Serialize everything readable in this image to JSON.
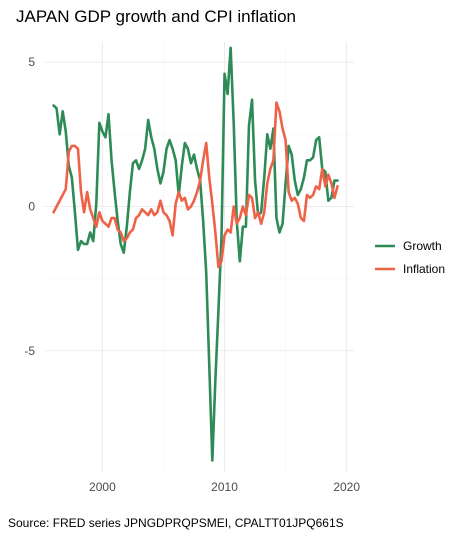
{
  "chart_data": {
    "type": "line",
    "title": "JAPAN GDP growth and CPI inflation",
    "xlabel": "",
    "ylabel": "",
    "caption": "Source: FRED series JPNGDPRQPSMEI, CPALTT01JPQ661S",
    "x_ticks": [
      2000,
      2010,
      2020
    ],
    "y_ticks": [
      -5,
      0,
      5
    ],
    "xlim": [
      1995.3,
      2020.6
    ],
    "ylim": [
      -9.2,
      5.7
    ],
    "grid": true,
    "legend": {
      "position": "right",
      "entries": [
        "Growth",
        "Inflation"
      ]
    },
    "series": [
      {
        "name": "Growth",
        "color": "#2E8B57",
        "points": [
          [
            1996.0,
            3.5
          ],
          [
            1996.25,
            3.4
          ],
          [
            1996.5,
            2.5
          ],
          [
            1996.75,
            3.3
          ],
          [
            1997.0,
            2.6
          ],
          [
            1997.25,
            1.4
          ],
          [
            1997.5,
            1.0
          ],
          [
            1997.75,
            -0.2
          ],
          [
            1998.0,
            -1.5
          ],
          [
            1998.25,
            -1.2
          ],
          [
            1998.5,
            -1.3
          ],
          [
            1998.75,
            -1.3
          ],
          [
            1999.0,
            -0.9
          ],
          [
            1999.25,
            -1.2
          ],
          [
            1999.5,
            0.1
          ],
          [
            1999.75,
            2.9
          ],
          [
            2000.0,
            2.6
          ],
          [
            2000.25,
            2.4
          ],
          [
            2000.5,
            3.2
          ],
          [
            2000.75,
            1.6
          ],
          [
            2001.0,
            0.5
          ],
          [
            2001.25,
            -0.5
          ],
          [
            2001.5,
            -1.3
          ],
          [
            2001.75,
            -1.6
          ],
          [
            2002.0,
            -0.7
          ],
          [
            2002.25,
            0.5
          ],
          [
            2002.5,
            1.5
          ],
          [
            2002.75,
            1.6
          ],
          [
            2003.0,
            1.3
          ],
          [
            2003.25,
            1.6
          ],
          [
            2003.5,
            2.0
          ],
          [
            2003.75,
            3.0
          ],
          [
            2004.0,
            2.4
          ],
          [
            2004.25,
            2.0
          ],
          [
            2004.5,
            1.3
          ],
          [
            2004.75,
            0.8
          ],
          [
            2005.0,
            1.2
          ],
          [
            2005.25,
            2.0
          ],
          [
            2005.5,
            2.3
          ],
          [
            2005.75,
            2.0
          ],
          [
            2006.0,
            1.6
          ],
          [
            2006.25,
            0.4
          ],
          [
            2006.5,
            1.4
          ],
          [
            2006.75,
            2.2
          ],
          [
            2007.0,
            2.0
          ],
          [
            2007.25,
            1.5
          ],
          [
            2007.5,
            1.8
          ],
          [
            2007.75,
            1.3
          ],
          [
            2008.0,
            0.9
          ],
          [
            2008.25,
            -0.5
          ],
          [
            2008.5,
            -2.3
          ],
          [
            2008.75,
            -5.5
          ],
          [
            2009.0,
            -8.8
          ],
          [
            2009.25,
            -6.0
          ],
          [
            2009.5,
            -3.6
          ],
          [
            2009.75,
            -1.1
          ],
          [
            2010.0,
            4.6
          ],
          [
            2010.25,
            3.9
          ],
          [
            2010.5,
            5.5
          ],
          [
            2010.75,
            2.9
          ],
          [
            2011.0,
            -0.5
          ],
          [
            2011.25,
            -1.9
          ],
          [
            2011.5,
            -0.7
          ],
          [
            2011.75,
            -0.7
          ],
          [
            2012.0,
            2.8
          ],
          [
            2012.25,
            3.7
          ],
          [
            2012.5,
            0.9
          ],
          [
            2012.75,
            -0.3
          ],
          [
            2013.0,
            -0.2
          ],
          [
            2013.25,
            1.0
          ],
          [
            2013.5,
            2.5
          ],
          [
            2013.75,
            2.0
          ],
          [
            2014.0,
            2.7
          ],
          [
            2014.25,
            -0.4
          ],
          [
            2014.5,
            -0.9
          ],
          [
            2014.75,
            -0.6
          ],
          [
            2015.0,
            0.8
          ],
          [
            2015.25,
            2.1
          ],
          [
            2015.5,
            1.8
          ],
          [
            2015.75,
            0.9
          ],
          [
            2016.0,
            0.4
          ],
          [
            2016.25,
            0.6
          ],
          [
            2016.5,
            1.0
          ],
          [
            2016.75,
            1.6
          ],
          [
            2017.0,
            1.6
          ],
          [
            2017.25,
            1.7
          ],
          [
            2017.5,
            2.3
          ],
          [
            2017.75,
            2.4
          ],
          [
            2018.0,
            1.3
          ],
          [
            2018.25,
            1.2
          ],
          [
            2018.5,
            0.2
          ],
          [
            2018.75,
            0.3
          ],
          [
            2019.0,
            0.9
          ],
          [
            2019.25,
            0.9
          ]
        ]
      },
      {
        "name": "Inflation",
        "color": "#EE6347",
        "points": [
          [
            1996.0,
            -0.2
          ],
          [
            1996.25,
            0.0
          ],
          [
            1996.5,
            0.2
          ],
          [
            1996.75,
            0.4
          ],
          [
            1997.0,
            0.6
          ],
          [
            1997.25,
            1.9
          ],
          [
            1997.5,
            2.1
          ],
          [
            1997.75,
            2.1
          ],
          [
            1998.0,
            2.0
          ],
          [
            1998.25,
            0.5
          ],
          [
            1998.5,
            -0.2
          ],
          [
            1998.75,
            0.5
          ],
          [
            1999.0,
            -0.1
          ],
          [
            1999.25,
            -0.4
          ],
          [
            1999.5,
            -0.7
          ],
          [
            1999.75,
            -0.2
          ],
          [
            2000.0,
            -0.5
          ],
          [
            2000.25,
            -0.6
          ],
          [
            2000.5,
            -0.7
          ],
          [
            2000.75,
            -0.4
          ],
          [
            2001.0,
            -0.4
          ],
          [
            2001.25,
            -0.8
          ],
          [
            2001.5,
            -0.9
          ],
          [
            2001.75,
            -1.2
          ],
          [
            2002.0,
            -1.1
          ],
          [
            2002.25,
            -0.9
          ],
          [
            2002.5,
            -0.8
          ],
          [
            2002.75,
            -0.4
          ],
          [
            2003.0,
            -0.3
          ],
          [
            2003.25,
            -0.1
          ],
          [
            2003.5,
            -0.2
          ],
          [
            2003.75,
            -0.3
          ],
          [
            2004.0,
            -0.1
          ],
          [
            2004.25,
            -0.3
          ],
          [
            2004.5,
            -0.2
          ],
          [
            2004.75,
            0.2
          ],
          [
            2005.0,
            -0.2
          ],
          [
            2005.25,
            -0.3
          ],
          [
            2005.5,
            -0.5
          ],
          [
            2005.75,
            -1.0
          ],
          [
            2006.0,
            0.1
          ],
          [
            2006.25,
            0.5
          ],
          [
            2006.5,
            0.2
          ],
          [
            2006.75,
            0.3
          ],
          [
            2007.0,
            -0.1
          ],
          [
            2007.25,
            0.0
          ],
          [
            2007.5,
            0.2
          ],
          [
            2007.75,
            0.5
          ],
          [
            2008.0,
            0.9
          ],
          [
            2008.25,
            1.6
          ],
          [
            2008.5,
            2.2
          ],
          [
            2008.75,
            1.0
          ],
          [
            2009.0,
            0.1
          ],
          [
            2009.25,
            -0.9
          ],
          [
            2009.5,
            -2.1
          ],
          [
            2009.75,
            -1.9
          ],
          [
            2010.0,
            -1.0
          ],
          [
            2010.25,
            -0.8
          ],
          [
            2010.5,
            -0.9
          ],
          [
            2010.75,
            0.0
          ],
          [
            2011.0,
            -0.6
          ],
          [
            2011.25,
            -0.4
          ],
          [
            2011.5,
            0.0
          ],
          [
            2011.75,
            -0.3
          ],
          [
            2012.0,
            0.4
          ],
          [
            2012.25,
            0.3
          ],
          [
            2012.5,
            -0.4
          ],
          [
            2012.75,
            -0.2
          ],
          [
            2013.0,
            -0.6
          ],
          [
            2013.25,
            -0.2
          ],
          [
            2013.5,
            0.8
          ],
          [
            2013.75,
            1.3
          ],
          [
            2014.0,
            1.6
          ],
          [
            2014.25,
            3.6
          ],
          [
            2014.5,
            3.3
          ],
          [
            2014.75,
            2.7
          ],
          [
            2015.0,
            2.3
          ],
          [
            2015.25,
            0.5
          ],
          [
            2015.5,
            0.2
          ],
          [
            2015.75,
            0.3
          ],
          [
            2016.0,
            0.1
          ],
          [
            2016.25,
            -0.4
          ],
          [
            2016.5,
            -0.5
          ],
          [
            2016.75,
            0.4
          ],
          [
            2017.0,
            0.3
          ],
          [
            2017.25,
            0.4
          ],
          [
            2017.5,
            0.7
          ],
          [
            2017.75,
            0.6
          ],
          [
            2018.0,
            1.3
          ],
          [
            2018.25,
            0.7
          ],
          [
            2018.5,
            1.1
          ],
          [
            2018.75,
            0.8
          ],
          [
            2019.0,
            0.3
          ],
          [
            2019.25,
            0.7
          ]
        ]
      }
    ]
  }
}
